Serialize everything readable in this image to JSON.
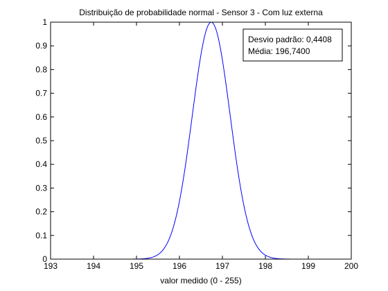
{
  "chart_data": {
    "type": "line",
    "title": "Distribuição de probabilidade normal - Sensor 3 - Com luz externa",
    "xlabel": "valor medido (0 - 255)",
    "ylabel": "",
    "xlim": [
      193,
      200
    ],
    "ylim": [
      0,
      1
    ],
    "x_ticks": [
      "193",
      "194",
      "195",
      "196",
      "197",
      "198",
      "199",
      "200"
    ],
    "y_ticks": [
      "0",
      "0.1",
      "0.2",
      "0.3",
      "0.4",
      "0.5",
      "0.6",
      "0.7",
      "0.8",
      "0.9",
      "1"
    ],
    "grid": false,
    "series": [
      {
        "color": "#0000ff",
        "distribution": "normal-normalized-peak",
        "mean": 196.74,
        "std": 0.4408
      }
    ],
    "annotation": {
      "placement": "top-right",
      "lines": [
        "Desvio padrão: 0,4408",
        "Média: 196,7400"
      ]
    }
  }
}
